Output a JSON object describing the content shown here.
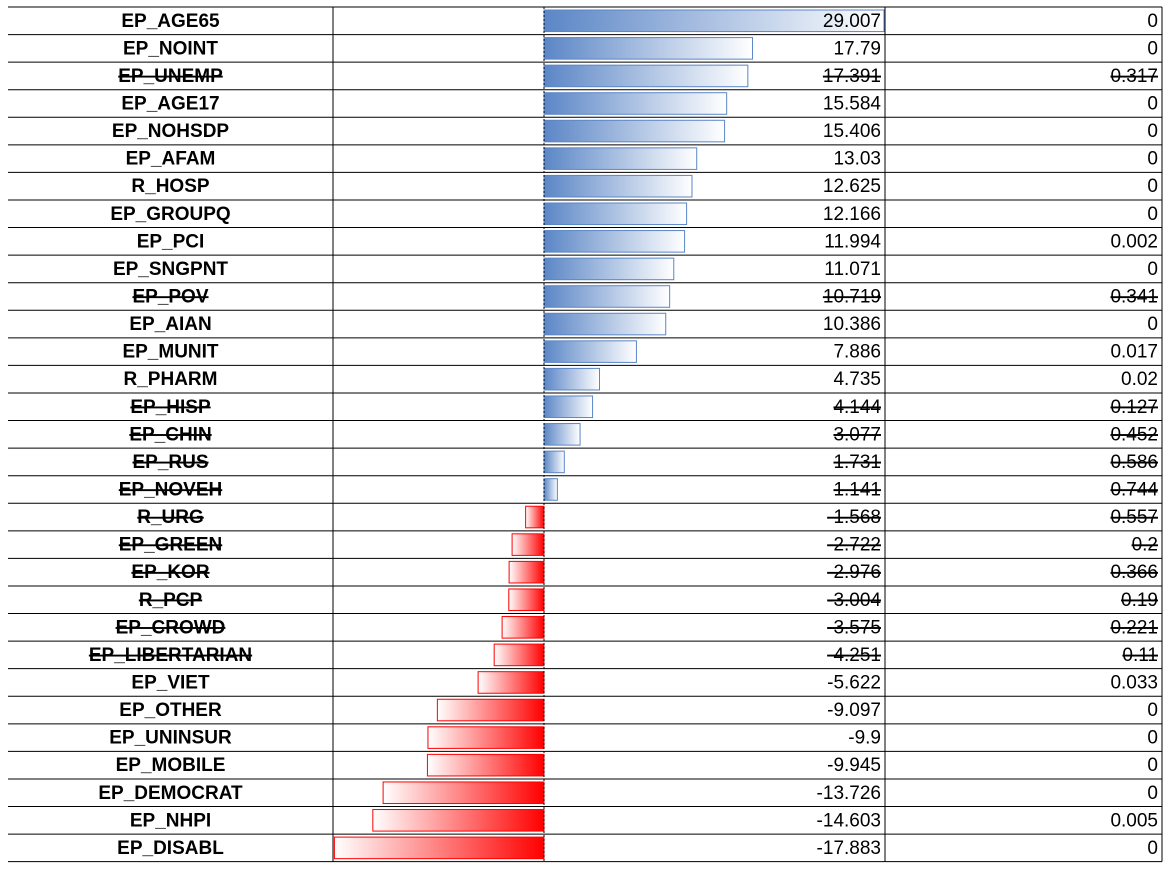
{
  "table": {
    "rows": [
      {
        "name": "EP_AGE65",
        "value": 29.007,
        "p": 0,
        "struck": false
      },
      {
        "name": "EP_NOINT",
        "value": 17.79,
        "p": 0,
        "struck": false
      },
      {
        "name": "EP_UNEMP",
        "value": 17.391,
        "p": 0.317,
        "struck": true
      },
      {
        "name": "EP_AGE17",
        "value": 15.584,
        "p": 0,
        "struck": false
      },
      {
        "name": "EP_NOHSDP",
        "value": 15.406,
        "p": 0,
        "struck": false
      },
      {
        "name": "EP_AFAM",
        "value": 13.03,
        "p": 0,
        "struck": false
      },
      {
        "name": "R_HOSP",
        "value": 12.625,
        "p": 0,
        "struck": false
      },
      {
        "name": "EP_GROUPQ",
        "value": 12.166,
        "p": 0,
        "struck": false
      },
      {
        "name": "EP_PCI",
        "value": 11.994,
        "p": 0.002,
        "struck": false
      },
      {
        "name": "EP_SNGPNT",
        "value": 11.071,
        "p": 0,
        "struck": false
      },
      {
        "name": "EP_POV",
        "value": 10.719,
        "p": 0.341,
        "struck": true
      },
      {
        "name": "EP_AIAN",
        "value": 10.386,
        "p": 0,
        "struck": false
      },
      {
        "name": "EP_MUNIT",
        "value": 7.886,
        "p": 0.017,
        "struck": false
      },
      {
        "name": "R_PHARM",
        "value": 4.735,
        "p": 0.02,
        "struck": false
      },
      {
        "name": "EP_HISP",
        "value": 4.144,
        "p": 0.127,
        "struck": true
      },
      {
        "name": "EP_CHIN",
        "value": 3.077,
        "p": 0.452,
        "struck": true
      },
      {
        "name": "EP_RUS",
        "value": 1.731,
        "p": 0.586,
        "struck": true
      },
      {
        "name": "EP_NOVEH",
        "value": 1.141,
        "p": 0.744,
        "struck": true
      },
      {
        "name": "R_URG",
        "value": -1.568,
        "p": 0.557,
        "struck": true
      },
      {
        "name": "EP_GREEN",
        "value": -2.722,
        "p": 0.2,
        "struck": true
      },
      {
        "name": "EP_KOR",
        "value": -2.976,
        "p": 0.366,
        "struck": true
      },
      {
        "name": "R_PCP",
        "value": -3.004,
        "p": 0.19,
        "struck": true
      },
      {
        "name": "EP_CROWD",
        "value": -3.575,
        "p": 0.221,
        "struck": true
      },
      {
        "name": "EP_LIBERTARIAN",
        "value": -4.251,
        "p": 0.11,
        "struck": true
      },
      {
        "name": "EP_VIET",
        "value": -5.622,
        "p": 0.033,
        "struck": false
      },
      {
        "name": "EP_OTHER",
        "value": -9.097,
        "p": 0,
        "struck": false
      },
      {
        "name": "EP_UNINSUR",
        "value": -9.9,
        "p": 0,
        "struck": false
      },
      {
        "name": "EP_MOBILE",
        "value": -9.945,
        "p": 0,
        "struck": false
      },
      {
        "name": "EP_DEMOCRAT",
        "value": -13.726,
        "p": 0,
        "struck": false
      },
      {
        "name": "EP_NHPI",
        "value": -14.603,
        "p": 0.005,
        "struck": false
      },
      {
        "name": "EP_DISABL",
        "value": -17.883,
        "p": 0,
        "struck": false
      }
    ]
  }
}
